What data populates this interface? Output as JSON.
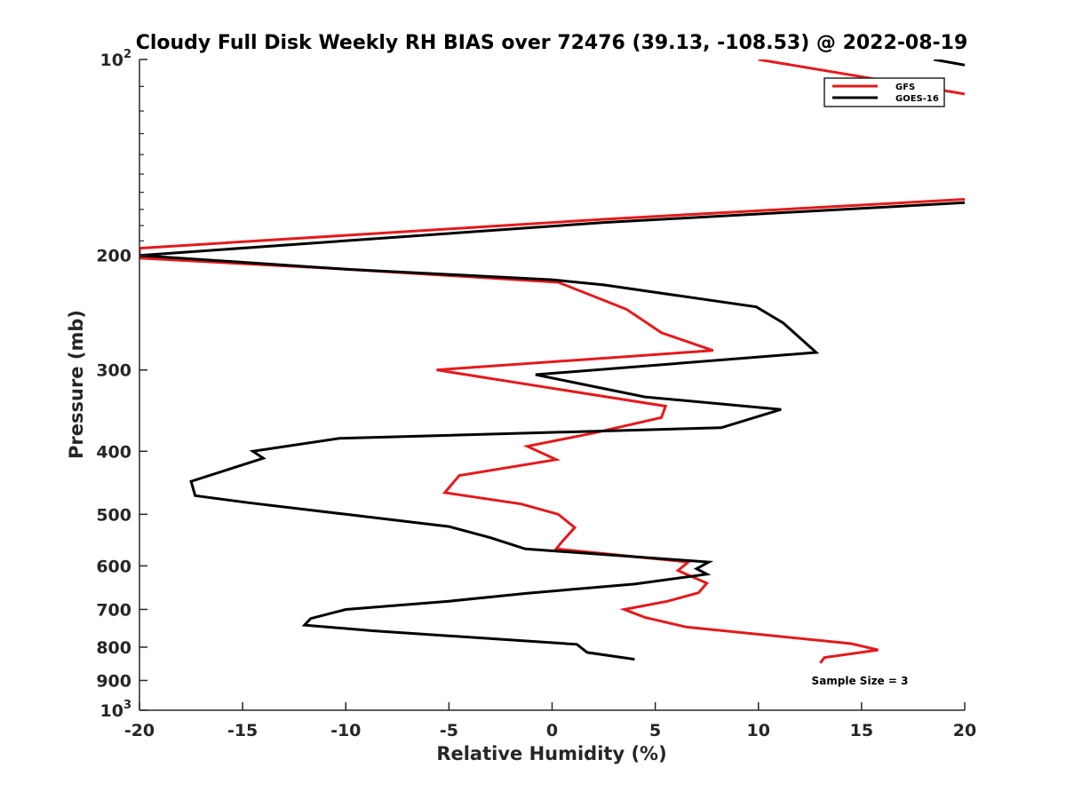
{
  "chart_data": {
    "type": "line",
    "title": "Cloudy Full Disk Weekly RH BIAS over 72476 (39.13, -108.53) @ 2022-08-19",
    "xlabel": "Relative Humidity (%)",
    "ylabel": "Pressure (mb)",
    "xlim": [
      -20,
      20
    ],
    "ylim": [
      100,
      1000
    ],
    "y_scale": "log",
    "y_reversed": true,
    "grid": false,
    "legend_position": "top-right",
    "x_ticks": [
      "-20",
      "-15",
      "-10",
      "-5",
      "0",
      "5",
      "10",
      "15",
      "20"
    ],
    "y_ticks": [
      {
        "base": "10",
        "exp": "2"
      },
      {
        "base": "200",
        "exp": ""
      },
      {
        "base": "300",
        "exp": ""
      },
      {
        "base": "400",
        "exp": ""
      },
      {
        "base": "500",
        "exp": ""
      },
      {
        "base": "600",
        "exp": ""
      },
      {
        "base": "700",
        "exp": ""
      },
      {
        "base": "800",
        "exp": ""
      },
      {
        "base": "900",
        "exp": ""
      },
      {
        "base": "10",
        "exp": "3"
      }
    ],
    "annotation": "Sample Size = 3",
    "series": [
      {
        "name": "GFS",
        "color": "#e41a1c",
        "points": [
          [
            10.0,
            100
          ],
          [
            20.0,
            113
          ],
          [
            null,
            null
          ],
          [
            20.0,
            164
          ],
          [
            2.5,
            176
          ],
          [
            -20.0,
            195
          ],
          [
            -20.0,
            202
          ],
          [
            -10.0,
            210
          ],
          [
            0.3,
            220
          ],
          [
            3.6,
            242
          ],
          [
            5.3,
            263
          ],
          [
            7.8,
            280
          ],
          [
            -5.6,
            300
          ],
          [
            5.5,
            341
          ],
          [
            5.3,
            355
          ],
          [
            2.0,
            375
          ],
          [
            -1.2,
            393
          ],
          [
            0.2,
            412
          ],
          [
            -4.5,
            436
          ],
          [
            -5.2,
            463
          ],
          [
            -1.5,
            482
          ],
          [
            0.3,
            500
          ],
          [
            1.1,
            524
          ],
          [
            0.5,
            550
          ],
          [
            0.2,
            565
          ],
          [
            6.6,
            592
          ],
          [
            6.1,
            610
          ],
          [
            7.5,
            638
          ],
          [
            7.1,
            660
          ],
          [
            5.6,
            680
          ],
          [
            3.5,
            700
          ],
          [
            4.5,
            720
          ],
          [
            6.5,
            745
          ],
          [
            14.5,
            790
          ],
          [
            15.8,
            808
          ],
          [
            13.2,
            830
          ],
          [
            13.0,
            846
          ]
        ]
      },
      {
        "name": "GOES-16",
        "color": "#000000",
        "points": [
          [
            18.5,
            100
          ],
          [
            20.0,
            102
          ],
          [
            null,
            null
          ],
          [
            20.0,
            166
          ],
          [
            2.5,
            178
          ],
          [
            -20.0,
            200
          ],
          [
            -10.0,
            210
          ],
          [
            0.0,
            218
          ],
          [
            2.5,
            222
          ],
          [
            9.9,
            240
          ],
          [
            11.2,
            254
          ],
          [
            12.8,
            282
          ],
          [
            -0.8,
            305
          ],
          [
            4.5,
            330
          ],
          [
            11.1,
            345
          ],
          [
            8.2,
            368
          ],
          [
            -10.3,
            382
          ],
          [
            -14.5,
            400
          ],
          [
            -14.0,
            410
          ],
          [
            -17.5,
            445
          ],
          [
            -17.3,
            468
          ],
          [
            -14.7,
            480
          ],
          [
            -10.0,
            500
          ],
          [
            -5.0,
            522
          ],
          [
            -3.0,
            543
          ],
          [
            -1.3,
            565
          ],
          [
            7.6,
            592
          ],
          [
            7.0,
            606
          ],
          [
            7.5,
            618
          ],
          [
            4.0,
            640
          ],
          [
            -1.2,
            661
          ],
          [
            -5.0,
            680
          ],
          [
            -10.0,
            700
          ],
          [
            -11.7,
            723
          ],
          [
            -12.0,
            740
          ],
          [
            -8.7,
            755
          ],
          [
            1.2,
            792
          ],
          [
            1.7,
            815
          ],
          [
            4.0,
            835
          ]
        ]
      }
    ]
  }
}
